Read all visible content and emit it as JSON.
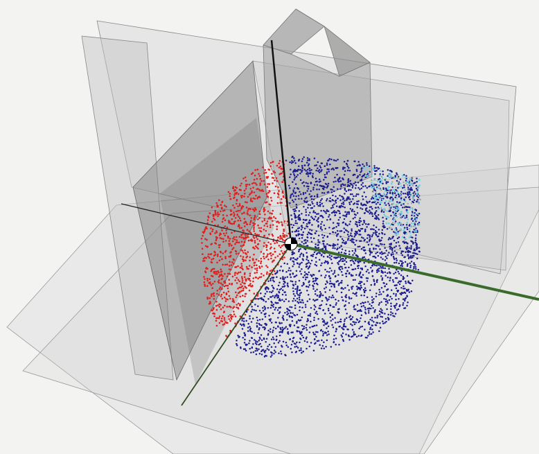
{
  "scene": {
    "background_color": "#f3f3f2",
    "point_cloud": {
      "clusters": [
        {
          "name": "red-cluster",
          "color": "#e0201f",
          "approx_count": 900
        },
        {
          "name": "navy-cluster",
          "color": "#1c1d8f",
          "approx_count": 2600
        },
        {
          "name": "cyan-cluster",
          "color": "#6ccfe2",
          "approx_count": 160
        },
        {
          "name": "gray-cluster",
          "color": "#9aa8a8",
          "approx_count": 60
        }
      ]
    },
    "axes": {
      "vertical_axis_color": "#111111",
      "green_axis_color": "#3b6b2c"
    },
    "origin_marker": {
      "icon": "origin-gizmo-icon",
      "fill_colors": [
        "#ffffff",
        "#000000"
      ]
    },
    "planes_color": "#c9c9c9",
    "prism_color": "#9a9a9a"
  }
}
